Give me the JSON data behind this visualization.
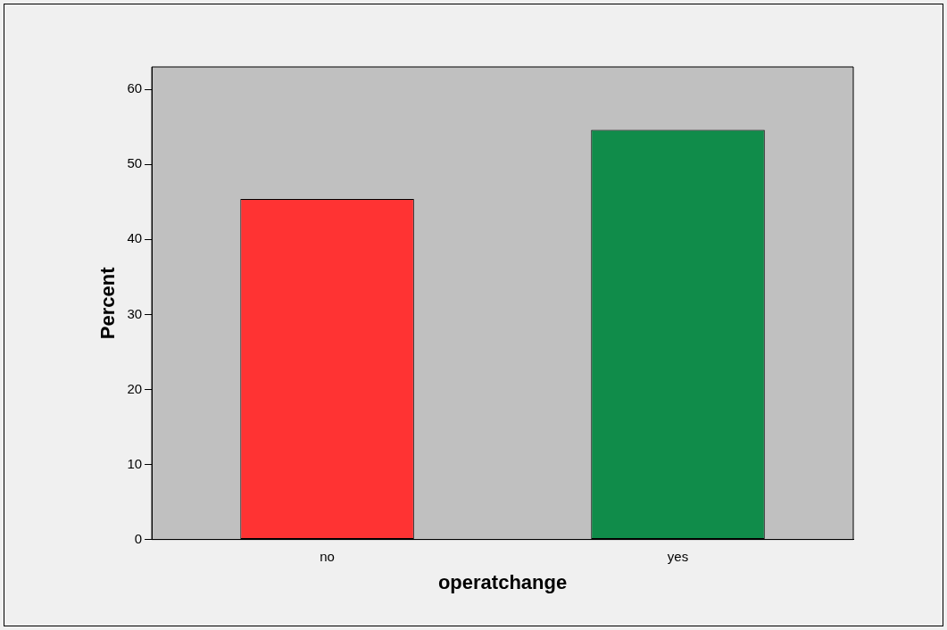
{
  "chart_data": {
    "type": "bar",
    "xlabel": "operatchange",
    "ylabel": "Percent",
    "categories": [
      "no",
      "yes"
    ],
    "values": [
      45.4,
      54.6
    ],
    "colors": [
      "#ff3333",
      "#108c4a"
    ],
    "ylim": [
      0,
      63
    ],
    "yticks": [
      0,
      10,
      20,
      30,
      40,
      50,
      60
    ],
    "grid": false,
    "legend": false
  }
}
